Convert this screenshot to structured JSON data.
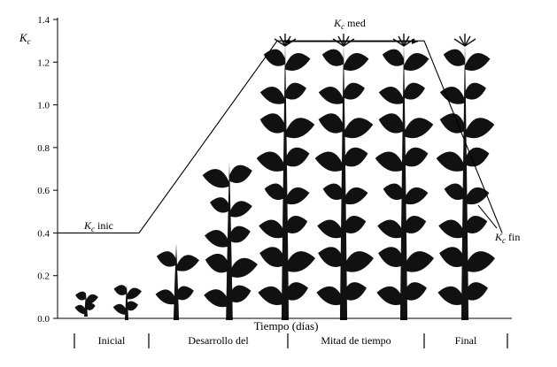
{
  "chart_data": {
    "type": "line",
    "title": "",
    "ylabel": "K",
    "ylabel_sub": "c",
    "xlabel": "Tiempo (días)",
    "ylim": [
      0,
      1.4
    ],
    "yticks": [
      {
        "value": 0.0,
        "label": "0.0"
      },
      {
        "value": 0.2,
        "label": "0.2"
      },
      {
        "value": 0.4,
        "label": "0.4"
      },
      {
        "value": 0.6,
        "label": "0.6"
      },
      {
        "value": 0.8,
        "label": "0.8"
      },
      {
        "value": 1.0,
        "label": "1.0"
      },
      {
        "value": 1.2,
        "label": "1.2"
      },
      {
        "value": 1.4,
        "label": "1.4"
      }
    ],
    "stages": [
      "Inicial",
      "Desarrollo del",
      "Mitad de tiempo",
      "Final"
    ],
    "series": [
      {
        "values": [
          0.4,
          0.4,
          1.3,
          1.3,
          0.4
        ]
      }
    ],
    "annotations": [
      {
        "main": "K",
        "sub": "c",
        "rest": " inic"
      },
      {
        "main": "K",
        "sub": "c",
        "rest": " med"
      },
      {
        "main": "K",
        "sub": "c",
        "rest": " fin"
      }
    ],
    "grid": false,
    "legend": "none",
    "illustration": "corn-plant-growth-silhouettes"
  }
}
